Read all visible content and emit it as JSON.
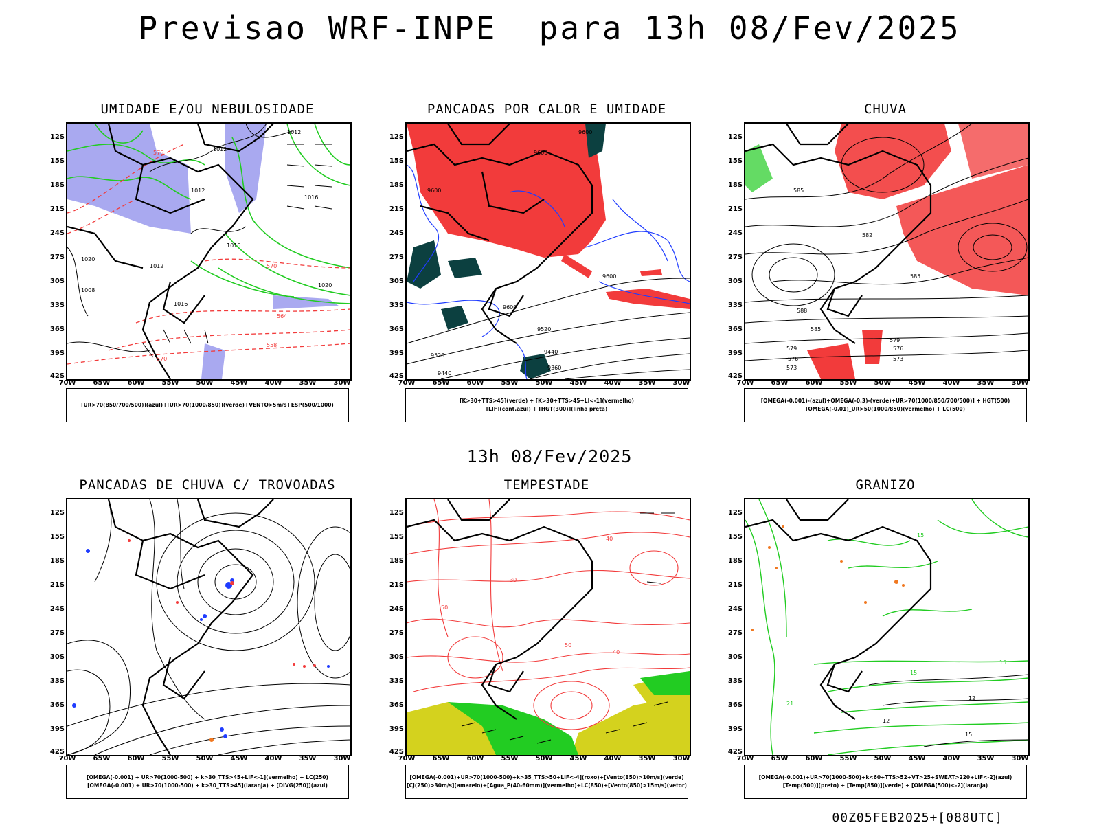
{
  "title": "Previsao WRF-INPE  para 13h 08/Fev/2025",
  "subtitle": "13h 08/Fev/2025",
  "footer": "00Z05FEB2025+[088UTC]",
  "lat_labels": [
    "12S",
    "15S",
    "18S",
    "21S",
    "24S",
    "27S",
    "30S",
    "33S",
    "36S",
    "39S",
    "42S"
  ],
  "lon_labels": [
    "70W",
    "65W",
    "60W",
    "55W",
    "50W",
    "45W",
    "40W",
    "35W",
    "30W"
  ],
  "panels": [
    {
      "title": "UMIDADE E/OU NEBULOSIDADE",
      "legend": [
        "[UR>70(850/700/500)](azul)+[UR>70(1000/850)](verde)+VENTO>5m/s+ESP(500/1000)"
      ]
    },
    {
      "title": "PANCADAS POR CALOR E UMIDADE",
      "legend": [
        "[K>30+TTS>45](verde) + [K>30+TTS>45+LI<-1](vermelho)",
        "[LIF](cont.azul) + [HGT(300)](linha preta)"
      ]
    },
    {
      "title": "CHUVA",
      "legend": [
        "[OMEGA(-0.001)-(azul)+OMEGA(-0.3)-(verde)+UR>70(1000/850/700/500)] + HGT(500)",
        "[OMEGA(-0.01)_UR>50(1000/850)(vermelho) + LC(500)"
      ]
    },
    {
      "title": "PANCADAS DE CHUVA C/ TROVOADAS",
      "legend": [
        "[OMEGA(-0.001) + UR>70(1000-500) + k>30_TTS>45+LIF<-1](vermelho) + LC(250)",
        "[OMEGA(-0.001) + UR>70(1000-500) + k>30_TTS>45](laranja) + [DIVG(250)](azul)"
      ]
    },
    {
      "title": "TEMPESTADE",
      "legend": [
        "[OMEGA(-0.001)+UR>70(1000-500)+k>35_TTS>50+LIF<-4](roxo)+[Vento(850)>10m/s](verde)",
        "[CJ(250)>30m/s](amarelo)+[Agua_P(40-60mm)](vermelho)+LC(850)+[Vento(850)>15m/s](vetor)"
      ]
    },
    {
      "title": "GRANIZO",
      "legend": [
        "[OMEGA(-0.001)+UR>70(1000-500)+k<60+TTS>52+VT>25+SWEAT>220+LIF<-2](azul)",
        "[Temp(500)](preto) + [Temp(850)](verde) + [OMEGA(500)<-2](laranja)"
      ]
    }
  ],
  "contour_labels": {
    "p1": [
      "1012",
      "1012",
      "1012",
      "1016",
      "1016",
      "1020",
      "576",
      "570",
      "1008",
      "1012",
      "1016",
      "570",
      "564",
      "558",
      "1020"
    ],
    "p2": [
      "9600",
      "9600",
      "9600",
      "9600",
      "9520",
      "9440",
      "9360",
      "9520",
      "9440",
      "9600"
    ],
    "p3": [
      "585",
      "582",
      "588",
      "585",
      "579",
      "576",
      "573",
      "579",
      "576",
      "573",
      "585"
    ],
    "p5": [
      "40",
      "50",
      "40",
      "30",
      "50"
    ],
    "p6": [
      "15",
      "12",
      "15",
      "21",
      "15",
      "12",
      "15"
    ]
  },
  "colors": {
    "red": "#f23b3b",
    "green": "#22cc22",
    "blue": "#1f3cff",
    "lavender": "#a9a9f0",
    "teal": "#0c4040",
    "yellow": "#d4d21e",
    "orange": "#f07820"
  }
}
